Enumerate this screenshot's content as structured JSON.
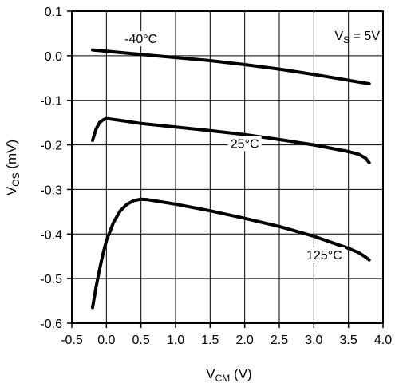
{
  "chart_data": {
    "type": "line",
    "xlabel": {
      "main": "V",
      "sub": "CM",
      "unit": " (V)"
    },
    "ylabel": {
      "main": "V",
      "sub": "OS",
      "unit": " (mV)"
    },
    "xlim": [
      -0.5,
      4.0
    ],
    "ylim": [
      -0.6,
      0.1
    ],
    "x_ticks": [
      -0.5,
      0.0,
      0.5,
      1.0,
      1.5,
      2.0,
      2.5,
      3.0,
      3.5,
      4.0
    ],
    "x_tick_labels": [
      "-0.5",
      "0.0",
      "0.5",
      "1.0",
      "1.5",
      "2.0",
      "2.5",
      "3.0",
      "3.5",
      "4.0"
    ],
    "y_ticks": [
      0.1,
      0.0,
      -0.1,
      -0.2,
      -0.3,
      -0.4,
      -0.5,
      -0.6
    ],
    "y_tick_labels": [
      "0.1",
      "0.0",
      "-0.1",
      "-0.2",
      "-0.3",
      "-0.4",
      "-0.5",
      "-0.6"
    ],
    "grid": true,
    "condition": {
      "main": "V",
      "sub": "S",
      "rest": " = 5V"
    },
    "series": [
      {
        "name": "-40°C",
        "x": [
          -0.2,
          0.0,
          0.5,
          1.0,
          1.5,
          2.0,
          2.5,
          3.0,
          3.5,
          3.8
        ],
        "y": [
          0.013,
          0.01,
          0.003,
          -0.004,
          -0.011,
          -0.02,
          -0.03,
          -0.042,
          -0.055,
          -0.063
        ]
      },
      {
        "name": "25°C",
        "x": [
          -0.2,
          -0.15,
          -0.1,
          -0.05,
          0.0,
          0.05,
          0.2,
          0.5,
          1.0,
          1.5,
          2.0,
          2.5,
          3.0,
          3.5,
          3.65,
          3.75,
          3.8
        ],
        "y": [
          -0.19,
          -0.165,
          -0.15,
          -0.144,
          -0.141,
          -0.142,
          -0.145,
          -0.152,
          -0.16,
          -0.168,
          -0.177,
          -0.188,
          -0.2,
          -0.215,
          -0.221,
          -0.23,
          -0.24
        ]
      },
      {
        "name": "125°C",
        "x": [
          -0.2,
          -0.15,
          -0.1,
          -0.05,
          0.0,
          0.05,
          0.1,
          0.2,
          0.3,
          0.4,
          0.5,
          0.6,
          1.0,
          1.5,
          2.0,
          2.5,
          3.0,
          3.5,
          3.65,
          3.75,
          3.8
        ],
        "y": [
          -0.565,
          -0.52,
          -0.48,
          -0.445,
          -0.415,
          -0.395,
          -0.375,
          -0.348,
          -0.333,
          -0.325,
          -0.322,
          -0.323,
          -0.333,
          -0.348,
          -0.365,
          -0.383,
          -0.405,
          -0.432,
          -0.442,
          -0.452,
          -0.458
        ]
      }
    ]
  }
}
